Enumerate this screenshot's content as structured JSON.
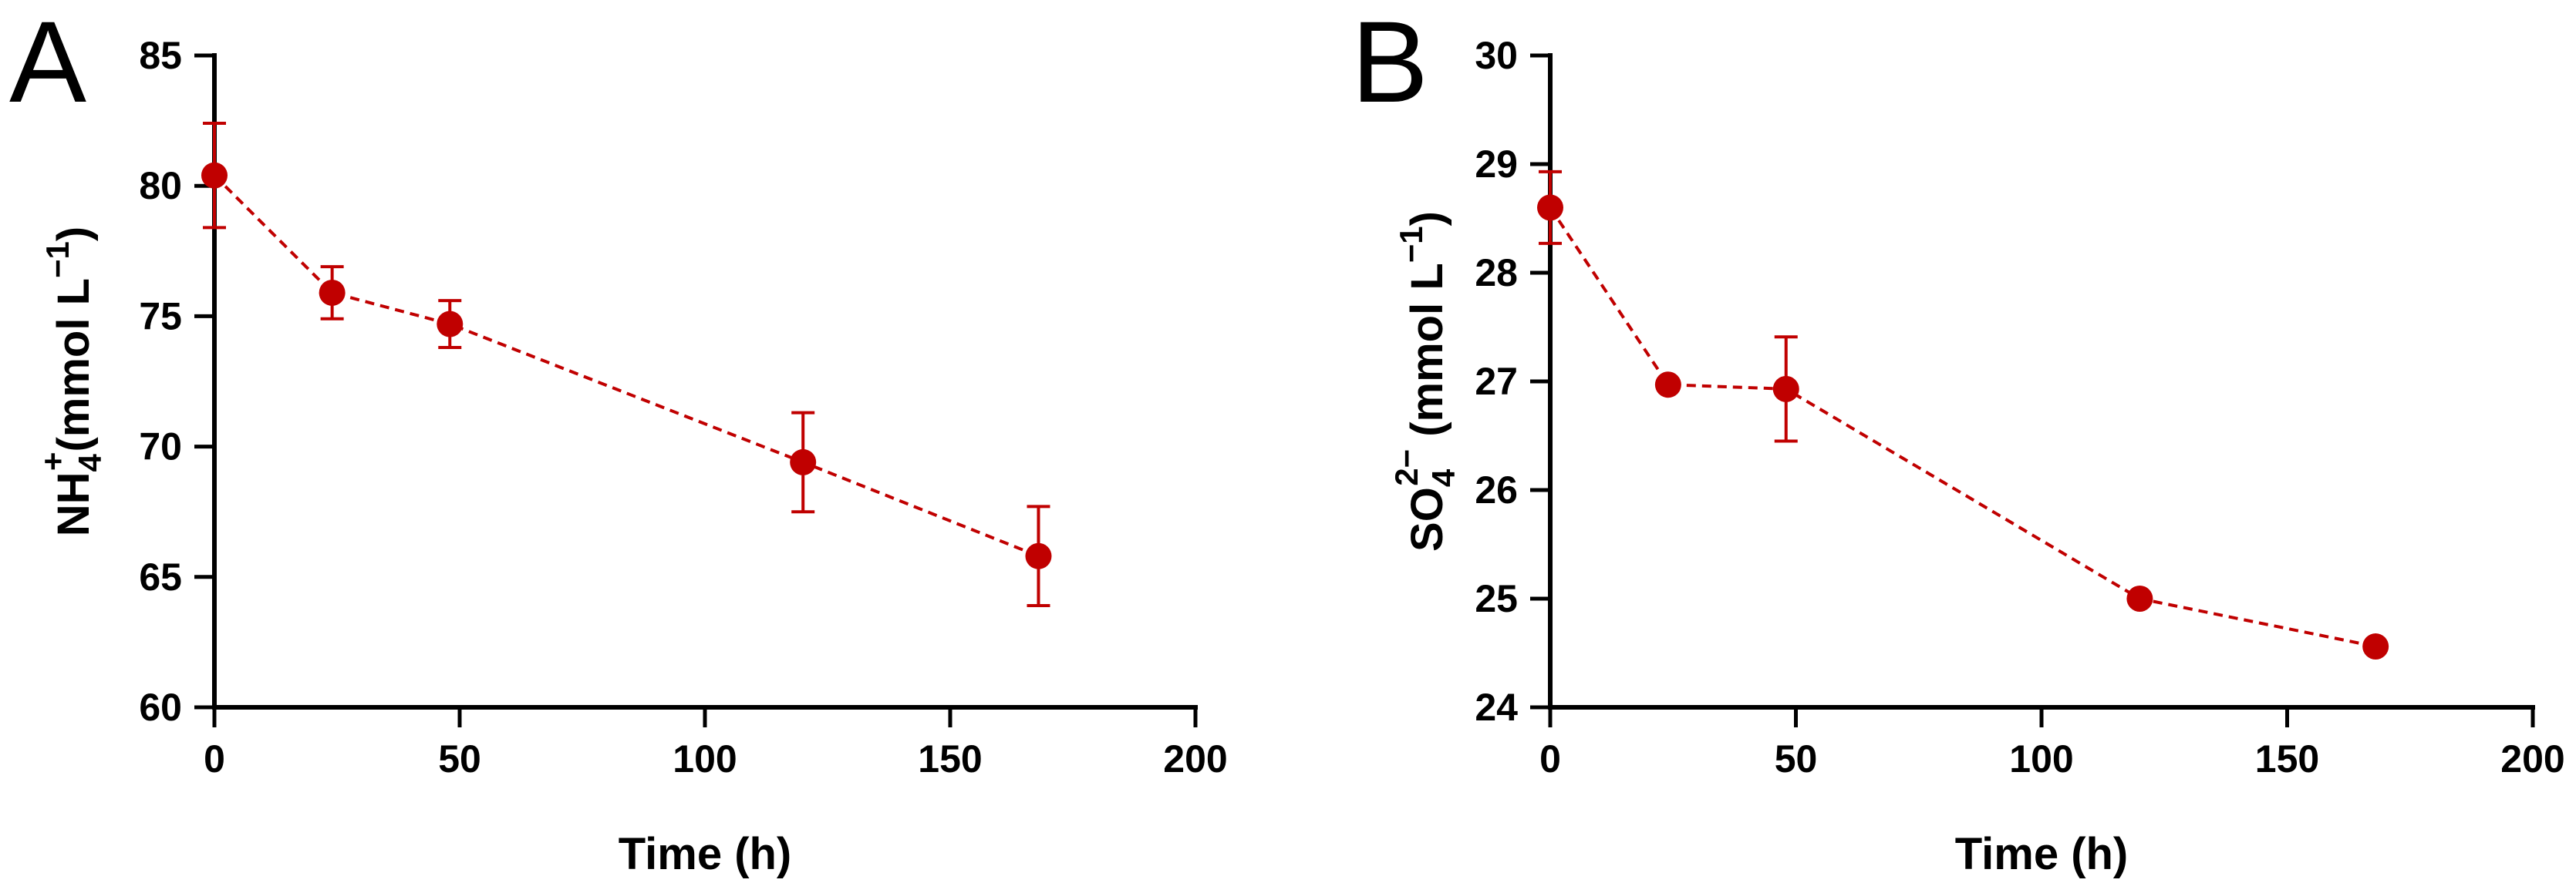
{
  "colors": {
    "series": "#c00000",
    "axis": "#000000"
  },
  "chart_data": [
    {
      "type": "line",
      "panel_label": "A",
      "title": "",
      "xlabel": "Time (h)",
      "ylabel": {
        "base": "NH",
        "sub": "4",
        "sup": "+",
        "rest": "(mmol L",
        "rest_sup": "−1",
        "close": ")"
      },
      "xlim": [
        0,
        200
      ],
      "ylim": [
        60,
        85
      ],
      "xticks": [
        0,
        50,
        100,
        150,
        200
      ],
      "yticks": [
        60,
        65,
        70,
        75,
        80,
        85
      ],
      "grid": false,
      "series": [
        {
          "x": [
            0,
            24,
            48,
            120,
            168
          ],
          "y": [
            80.4,
            75.9,
            74.7,
            69.4,
            65.8
          ],
          "error": [
            2.0,
            1.0,
            0.9,
            1.9,
            1.9
          ]
        }
      ]
    },
    {
      "type": "line",
      "panel_label": "B",
      "title": "",
      "xlabel": "Time (h)",
      "ylabel": {
        "base": "SO",
        "sub": "4",
        "sup": "2−",
        "rest": " (mmol L",
        "rest_sup": "−1",
        "close": ")"
      },
      "xlim": [
        0,
        200
      ],
      "ylim": [
        24,
        30
      ],
      "xticks": [
        0,
        50,
        100,
        150,
        200
      ],
      "yticks": [
        24,
        25,
        26,
        27,
        28,
        29,
        30
      ],
      "grid": false,
      "series": [
        {
          "x": [
            0,
            24,
            48,
            120,
            168
          ],
          "y": [
            28.6,
            26.97,
            26.93,
            25.0,
            24.56
          ],
          "error": [
            0.33,
            0.0,
            0.48,
            0.0,
            0.0
          ]
        }
      ]
    }
  ]
}
